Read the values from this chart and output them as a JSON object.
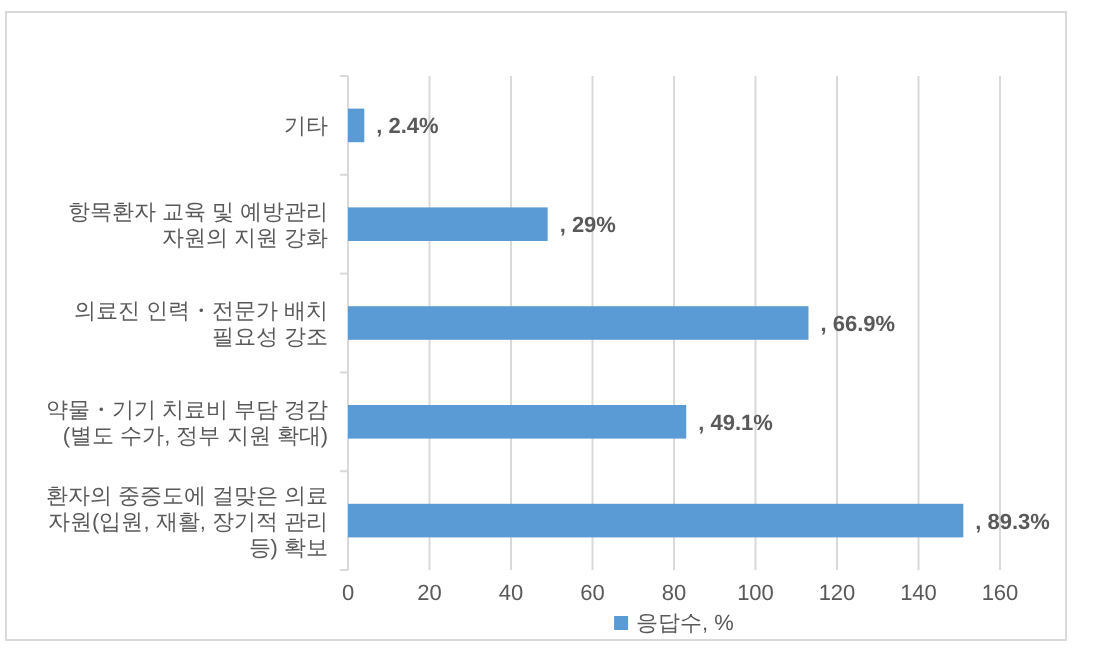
{
  "chart_data": {
    "type": "bar",
    "orientation": "horizontal",
    "categories": [
      "기타",
      "항목환자 교육 및 예방관리 자원의 지원 강화",
      "의료진 인력・전문가 배치 필요성 강조",
      "약물・기기 치료비 부담 경감 (별도 수가, 정부 지원 확대)",
      "환자의 중증도에 걸맞은 의료 자원(입원, 재활, 장기적 관리 등) 확보"
    ],
    "series": [
      {
        "name": "응답수, %",
        "color": "#5b9bd5",
        "values": [
          4,
          49,
          113,
          83,
          151
        ]
      }
    ],
    "annotations": [
      {
        "text": ", 2.4%",
        "x": 4,
        "y": "기타"
      },
      {
        "text": ", 29%",
        "x": 49,
        "y": "항목환자 교육 및 예방관리 자원의 지원 강화"
      },
      {
        "text": ", 66.9%",
        "x": 113,
        "y": "의료진 인력・전문가 배치 필요성 강조"
      },
      {
        "text": ", 49.1%",
        "x": 83,
        "y": "약물・기기 치료비 부담 경감 (별도 수가, 정부 지원 확대)"
      },
      {
        "text": ", 89.3%",
        "x": 151,
        "y": "환자의 중증도에 걸맞은 의료 자원(입원, 재활, 장기적 관리 등) 확보"
      }
    ],
    "xlim": [
      0,
      160
    ],
    "xticks": [
      0,
      20,
      40,
      60,
      80,
      100,
      120,
      140,
      160
    ],
    "grid": "x",
    "legend": "bottom"
  }
}
